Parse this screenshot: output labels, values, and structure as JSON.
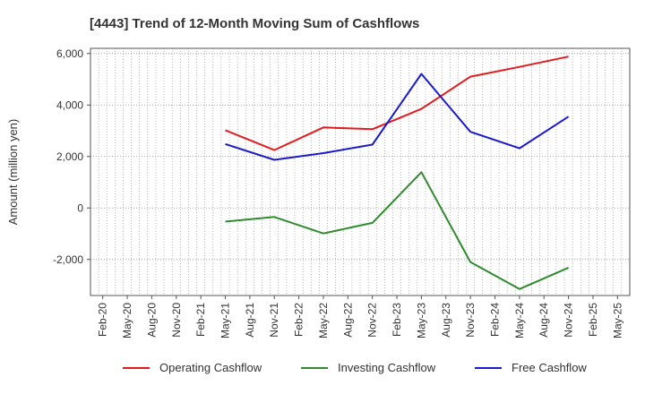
{
  "chart_data": {
    "type": "line",
    "title": "[4443]  Trend of 12-Month Moving Sum of Cashflows",
    "xlabel": "",
    "ylabel": "Amount (million yen)",
    "ylim": [
      -3400,
      6200
    ],
    "yticks": [
      6000,
      4000,
      2000,
      0,
      -2000
    ],
    "ytick_labels": [
      "6,000",
      "4,000",
      "2,000",
      "0",
      "-2,000"
    ],
    "categories": [
      "Feb-20",
      "May-20",
      "Aug-20",
      "Nov-20",
      "Feb-21",
      "May-21",
      "Aug-21",
      "Nov-21",
      "Feb-22",
      "May-22",
      "Aug-22",
      "Nov-22",
      "Feb-23",
      "May-23",
      "Aug-23",
      "Nov-23",
      "Feb-24",
      "May-24",
      "Aug-24",
      "Nov-24",
      "Feb-25",
      "May-25"
    ],
    "grid": true,
    "legend_position": "bottom",
    "series": [
      {
        "name": "Operating Cashflow",
        "color": "#e41a1c",
        "values": [
          null,
          null,
          null,
          null,
          null,
          3020,
          null,
          2250,
          null,
          3130,
          null,
          3060,
          null,
          3850,
          null,
          5100,
          null,
          5480,
          null,
          5880,
          null,
          null
        ]
      },
      {
        "name": "Investing Cashflow",
        "color": "#2e8b2e",
        "values": [
          null,
          null,
          null,
          null,
          null,
          -530,
          null,
          -350,
          null,
          -990,
          null,
          -580,
          null,
          1390,
          null,
          -2100,
          null,
          -3150,
          null,
          -2320,
          null,
          null
        ]
      },
      {
        "name": "Free Cashflow",
        "color": "#1a1acd",
        "values": [
          null,
          null,
          null,
          null,
          null,
          2480,
          null,
          1870,
          null,
          2130,
          null,
          2460,
          null,
          5210,
          null,
          2960,
          null,
          2320,
          null,
          3550,
          null,
          null
        ]
      }
    ]
  }
}
